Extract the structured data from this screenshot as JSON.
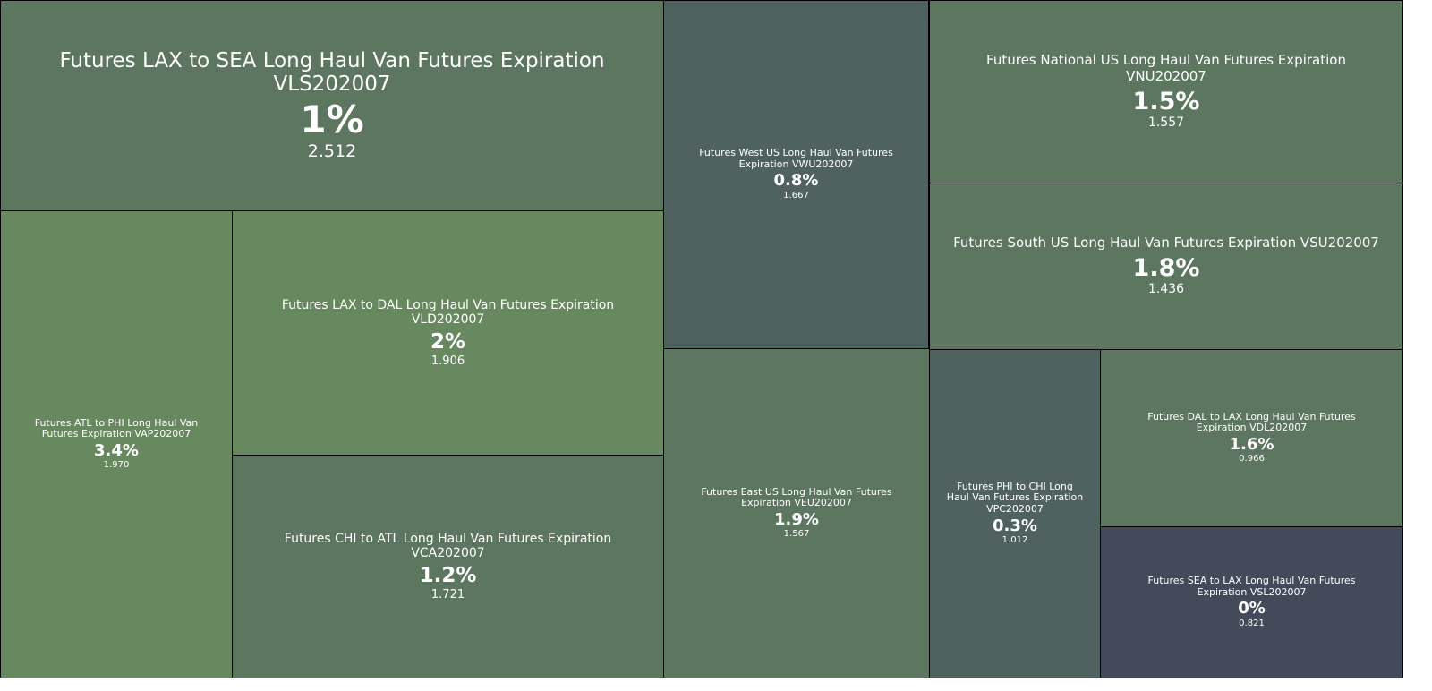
{
  "chart_data": {
    "type": "treemap",
    "title": "",
    "colors": {
      "green_light": "#688960",
      "green_mid": "#5c765f",
      "slate": "#50625f",
      "navy": "#434a5a"
    },
    "items": [
      {
        "id": "vls",
        "label": "Futures LAX to SEA Long Haul Van Futures Expiration VLS202007",
        "percent": "1%",
        "value": "2.512",
        "color": "#5c765f"
      },
      {
        "id": "vwu",
        "label": "Futures West US Long Haul Van Futures Expiration VWU202007",
        "percent": "0.8%",
        "value": "1.667",
        "color": "#50625f"
      },
      {
        "id": "vnu",
        "label": "Futures National US Long Haul Van Futures Expiration VNU202007",
        "percent": "1.5%",
        "value": "1.557",
        "color": "#5c765f"
      },
      {
        "id": "vsu",
        "label": "Futures South US Long Haul Van Futures Expiration VSU202007",
        "percent": "1.8%",
        "value": "1.436",
        "color": "#5c765f"
      },
      {
        "id": "vap",
        "label": "Futures ATL to PHI Long Haul Van Futures Expiration VAP202007",
        "percent": "3.4%",
        "value": "1.970",
        "color": "#688960"
      },
      {
        "id": "vld",
        "label": "Futures LAX to DAL Long Haul Van Futures Expiration VLD202007",
        "percent": "2%",
        "value": "1.906",
        "color": "#688960"
      },
      {
        "id": "vca",
        "label": "Futures CHI to ATL Long Haul Van Futures Expiration VCA202007",
        "percent": "1.2%",
        "value": "1.721",
        "color": "#5c765f"
      },
      {
        "id": "veu",
        "label": "Futures East US Long Haul Van Futures Expiration VEU202007",
        "percent": "1.9%",
        "value": "1.567",
        "color": "#5c765f"
      },
      {
        "id": "vpc",
        "label": "Futures PHI to CHI Long Haul Van Futures Expiration VPC202007",
        "percent": "0.3%",
        "value": "1.012",
        "color": "#50625f"
      },
      {
        "id": "vdl",
        "label": "Futures DAL to LAX Long Haul Van Futures Expiration VDL202007",
        "percent": "1.6%",
        "value": "0.966",
        "color": "#5c765f"
      },
      {
        "id": "vsl",
        "label": "Futures SEA to LAX Long Haul Van Futures Expiration VSL202007",
        "percent": "0%",
        "value": "0.821",
        "color": "#434a5a"
      }
    ]
  }
}
